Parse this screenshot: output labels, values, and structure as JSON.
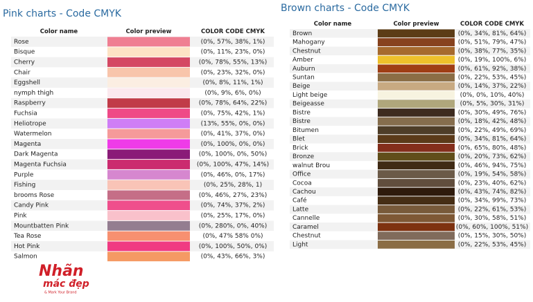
{
  "pink": {
    "title": "Pink charts - Code CMYK",
    "headers": [
      "Color name",
      "Color preview",
      "COLOR CODE CMYK"
    ],
    "rows": [
      {
        "name": "Rose",
        "code": "(0%, 57%, 38%, 1%)",
        "color": "#ef7f92"
      },
      {
        "name": "Bisque",
        "code": "(0%, 11%, 23%, 0%)",
        "color": "#fde3c5"
      },
      {
        "name": "Cherry",
        "code": "(0%, 78%, 55%, 13%)",
        "color": "#d44863"
      },
      {
        "name": "Chair",
        "code": "(0%, 23%, 32%, 0%)",
        "color": "#f8c5ab"
      },
      {
        "name": "Eggshell",
        "code": "(0%, 8%, 11%, 1%)",
        "color": "#fbeee2"
      },
      {
        "name": "nymph thigh",
        "code": "(0%, 9%, 6%, 0%)",
        "color": "#fbe9ee"
      },
      {
        "name": "Raspberry",
        "code": "(0%, 78%, 64%, 22%)",
        "color": "#c13b48"
      },
      {
        "name": "Fuchsia",
        "code": "(0%, 75%, 42%, 1%)",
        "color": "#ef4a87"
      },
      {
        "name": "Heliotrope",
        "code": "(13%, 55%, 0%, 0%)",
        "color": "#cf7ef6"
      },
      {
        "name": "Watermelon",
        "code": "(0%, 41%, 37%, 0%)",
        "color": "#f59a9a"
      },
      {
        "name": "Magenta",
        "code": "(0%, 100%, 0%, 0%)",
        "color": "#ef3be8"
      },
      {
        "name": "Dark Magenta",
        "code": "(0%, 100%, 0%, 50%)",
        "color": "#8a1b78"
      },
      {
        "name": "Magenta Fuchsia",
        "code": "(0%, 100%, 47%, 14%)",
        "color": "#cb2b6f"
      },
      {
        "name": "Purple",
        "code": "(0%, 46%, 0%, 17%)",
        "color": "#d687cf"
      },
      {
        "name": "Fishing",
        "code": "(0%, 25%, 28%, 1)",
        "color": "#f9c4b7"
      },
      {
        "name": "brooms Rose",
        "code": "(0%, 46%, 27%, 23%)",
        "color": "#c56e87"
      },
      {
        "name": "Candy Pink",
        "code": "(0%, 74%, 37%, 2%)",
        "color": "#ef4f8c"
      },
      {
        "name": "Pink",
        "code": "(0%, 25%, 17%, 0%)",
        "color": "#f9c1cb"
      },
      {
        "name": "Mountbatten Pink",
        "code": "(0%, 280%, 0%, 40%)",
        "color": "#947d90"
      },
      {
        "name": "Tea Rose",
        "code": "(0%, 47% 58% 0%)",
        "color": "#f79070"
      },
      {
        "name": "Hot Pink",
        "code": "(0%, 100%, 50%, 0%)",
        "color": "#f03b82"
      },
      {
        "name": "Salmon",
        "code": "(0%, 43%, 66%, 3%)",
        "color": "#f59a64"
      }
    ]
  },
  "brown": {
    "title": "Brown charts - Code CMYK",
    "headers": [
      "Color name",
      "Color preview",
      "COLOR CODE CMYK"
    ],
    "rows": [
      {
        "name": "Brown",
        "code": "(0%, 34%, 81%, 64%)",
        "color": "#5c3c16"
      },
      {
        "name": "Mahogany",
        "code": "(0%, 51%, 79%, 47%)",
        "color": "#87421e"
      },
      {
        "name": "Chestnut",
        "code": "(0%, 38%, 77%, 35%)",
        "color": "#a66a2e"
      },
      {
        "name": "Amber",
        "code": "(0%, 19%, 100%, 6%)",
        "color": "#eec02b"
      },
      {
        "name": "Auburn",
        "code": "(0%, 61%, 92%, 38%)",
        "color": "#9f3e15"
      },
      {
        "name": "Suntan",
        "code": "(0%, 22%, 53%, 45%)",
        "color": "#8b6d45"
      },
      {
        "name": "Beige",
        "code": "(0%, 14%, 37%, 22%)",
        "color": "#c8aa82"
      },
      {
        "name": "Light beige",
        "code": "(0%, 0%, 10%, 40%)",
        "color": "#f7f3e0"
      },
      {
        "name": "Beigeasse",
        "code": "(0%, 5%, 30%, 31%)",
        "color": "#b0a77c"
      },
      {
        "name": "Bistre",
        "code": "(0%, 30%, 49%, 76%)",
        "color": "#3d2b1f"
      },
      {
        "name": "Bistre",
        "code": "(0%, 18%, 42%, 48%)",
        "color": "#856d4d"
      },
      {
        "name": "Bitumen",
        "code": "(0%, 22%, 49%, 69%)",
        "color": "#4e3d28"
      },
      {
        "name": "Blet",
        "code": "(0%, 34%, 81%, 64%)",
        "color": "#5b3a19"
      },
      {
        "name": "Brick",
        "code": "(0%, 65%, 80%, 48%)",
        "color": "#842e1b"
      },
      {
        "name": "Bronze",
        "code": "(0%, 20%, 73%, 62%)",
        "color": "#614e1a"
      },
      {
        "name": "walnut Brou",
        "code": "(0%, 46%, 94%, 75%)",
        "color": "#3f2a14"
      },
      {
        "name": "Office",
        "code": "(0%, 19%, 54%, 58%)",
        "color": "#6b5a48"
      },
      {
        "name": "Cocoa",
        "code": "(0%, 23%, 40%, 62%)",
        "color": "#614e3d"
      },
      {
        "name": "Cachou",
        "code": "(0%, 43%, 74%, 82%)",
        "color": "#2f1b0c"
      },
      {
        "name": "Café",
        "code": "(0%, 34%, 99%, 73%)",
        "color": "#462e15"
      },
      {
        "name": "Latte",
        "code": "(0%, 22%, 61%, 53%)",
        "color": "#785a3a"
      },
      {
        "name": "Cannelle",
        "code": "(0%, 30%, 58%, 51%)",
        "color": "#7e5835"
      },
      {
        "name": "Caramel",
        "code": "(0%, 60%, 100%, 51%)",
        "color": "#7e3210"
      },
      {
        "name": "Chestnut",
        "code": "(0%, 15%, 30%, 50%)",
        "color": "#806b5b"
      },
      {
        "name": "Light",
        "code": "(0%, 22%, 53%, 45%)",
        "color": "#8b6d45"
      }
    ]
  },
  "logo": {
    "line1": "Nhãn",
    "line2": "mác đẹp",
    "tagline": "& Mark Your Brand"
  }
}
